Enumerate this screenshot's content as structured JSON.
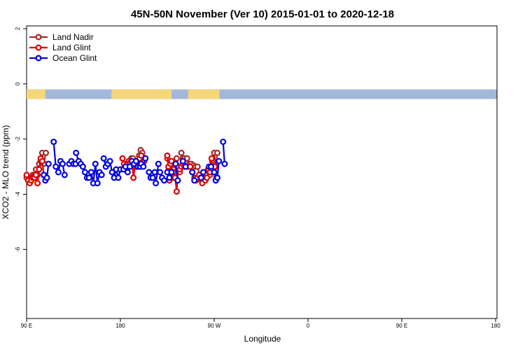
{
  "chart_data": {
    "type": "line",
    "title": "45N-50N November (Ver 10)   2015-01-01 to 2020-12-18",
    "xlabel": "Longitude",
    "ylabel": "XCO2 - MLO trend (ppm)",
    "xlim": [
      90,
      450
    ],
    "ylim": [
      -8.3,
      2
    ],
    "xticks": [
      {
        "value": 90,
        "label": "90 E"
      },
      {
        "value": 180,
        "label": "180"
      },
      {
        "value": 270,
        "label": "90 W"
      },
      {
        "value": 360,
        "label": "0"
      },
      {
        "value": 450,
        "label": "90 E"
      },
      {
        "value": 540,
        "label": "180"
      }
    ],
    "yticks": [
      {
        "value": 2,
        "label": "2"
      },
      {
        "value": 0,
        "label": "0"
      },
      {
        "value": -2,
        "label": "-2"
      },
      {
        "value": -4,
        "label": "-4"
      },
      {
        "value": -6,
        "label": "-6"
      }
    ],
    "grid": false,
    "legend_position": "top-left",
    "land_ocean_strip": {
      "y_range": [
        -0.55,
        -0.2
      ],
      "land_color": "#f5d77a",
      "ocean_color": "#a3b8d9"
    },
    "series": [
      {
        "name": "Land Nadir",
        "color": "#a52a2a",
        "segments": [
          [
            [
              90,
              -3.4
            ],
            [
              93,
              -3.5
            ],
            [
              96,
              -3.5
            ],
            [
              99,
              -3.4
            ],
            [
              102,
              -3.3
            ],
            [
              105,
              -3.3
            ],
            [
              108,
              -3.1
            ],
            [
              111,
              -3.3
            ],
            [
              114,
              -2.9
            ],
            [
              117,
              -2.8
            ],
            [
              120,
              -2.5
            ],
            [
              123,
              -2.9
            ],
            [
              127,
              -2.5
            ]
          ],
          [
            [
              279,
              -3.0
            ],
            [
              282,
              -3.0
            ],
            [
              285,
              -2.9
            ],
            [
              288,
              -2.8
            ],
            [
              291,
              -2.7
            ],
            [
              294,
              -2.7
            ],
            [
              297,
              -2.9
            ],
            [
              300,
              -3.0
            ],
            [
              303,
              -2.8
            ],
            [
              306,
              -2.6
            ],
            [
              309,
              -2.4
            ],
            [
              312,
              -2.5
            ],
            [
              315,
              -2.7
            ],
            [
              318,
              -2.7
            ]
          ],
          [
            [
              360,
              -2.7
            ],
            [
              363,
              -3.1
            ],
            [
              366,
              -2.9
            ],
            [
              369,
              -3.1
            ],
            [
              372,
              -3.1
            ],
            [
              375,
              -2.8
            ],
            [
              378,
              -2.7
            ],
            [
              381,
              -3.0
            ],
            [
              384,
              -3.2
            ],
            [
              387,
              -2.5
            ],
            [
              390,
              -2.7
            ],
            [
              393,
              -2.7
            ]
          ],
          [
            [
              398,
              -2.7
            ],
            [
              402,
              -2.9
            ],
            [
              406,
              -2.9
            ],
            [
              410,
              -2.95
            ],
            [
              414,
              -3.0
            ],
            [
              418,
              -3.0
            ],
            [
              422,
              -3.3
            ],
            [
              426,
              -3.5
            ],
            [
              430,
              -3.4
            ],
            [
              434,
              -3.3
            ],
            [
              438,
              -3.1
            ],
            [
              442,
              -3.3
            ],
            [
              446,
              -2.8
            ],
            [
              450,
              -2.5
            ],
            [
              453,
              -3.0
            ],
            [
              456,
              -2.5
            ]
          ]
        ]
      },
      {
        "name": "Land Glint",
        "color": "#e00000",
        "segments": [
          [
            [
              90,
              -3.3
            ],
            [
              93,
              -3.5
            ],
            [
              96,
              -3.6
            ],
            [
              99,
              -3.5
            ],
            [
              102,
              -3.4
            ],
            [
              105,
              -3.4
            ],
            [
              108,
              -3.3
            ],
            [
              111,
              -3.6
            ],
            [
              114,
              -3.1
            ],
            [
              117,
              -2.7
            ],
            [
              120,
              -2.8
            ],
            [
              123,
              -3.3
            ]
          ],
          [
            [
              274,
              -2.7
            ],
            [
              277,
              -2.9
            ],
            [
              280,
              -3.0
            ],
            [
              283,
              -2.9
            ],
            [
              286,
              -2.8
            ],
            [
              289,
              -2.85
            ],
            [
              292,
              -2.8
            ],
            [
              295,
              -3.4
            ],
            [
              298,
              -3.0
            ],
            [
              301,
              -3.0
            ],
            [
              304,
              -2.9
            ],
            [
              307,
              -2.7
            ],
            [
              310,
              -2.6
            ],
            [
              313,
              -2.9
            ],
            [
              316,
              -2.8
            ]
          ],
          [
            [
              360,
              -2.6
            ],
            [
              362,
              -3.0
            ],
            [
              364,
              -3.5
            ],
            [
              366,
              -2.9
            ],
            [
              368,
              -2.8
            ],
            [
              370,
              -3.4
            ],
            [
              372,
              -3.2
            ],
            [
              375,
              -3.4
            ],
            [
              378,
              -3.9
            ],
            [
              381,
              -3.0
            ],
            [
              384,
              -3.1
            ],
            [
              387,
              -3.0
            ],
            [
              390,
              -2.9
            ],
            [
              393,
              -3.0
            ]
          ],
          [
            [
              400,
              -3.0
            ],
            [
              404,
              -3.0
            ],
            [
              408,
              -3.2
            ],
            [
              412,
              -3.4
            ],
            [
              415,
              -3.5
            ],
            [
              418,
              -3.4
            ],
            [
              421,
              -3.3
            ],
            [
              424,
              -3.4
            ],
            [
              427,
              -3.6
            ],
            [
              430,
              -3.4
            ],
            [
              433,
              -3.5
            ],
            [
              436,
              -3.4
            ],
            [
              439,
              -3.1
            ],
            [
              442,
              -3.2
            ],
            [
              445,
              -2.7
            ],
            [
              448,
              -3.1
            ],
            [
              451,
              -3.0
            ],
            [
              454,
              -3.4
            ]
          ]
        ]
      },
      {
        "name": "Ocean Glint",
        "color": "#0000e0",
        "segments": [
          [
            [
              123,
              -3.3
            ],
            [
              126,
              -3.5
            ],
            [
              129,
              -3.4
            ],
            [
              132,
              -2.9
            ]
          ],
          [
            [
              142,
              -2.1
            ],
            [
              146,
              -3.0
            ]
          ],
          [
            [
              151,
              -3.2
            ],
            [
              155,
              -2.8
            ],
            [
              159,
              -2.9
            ],
            [
              163,
              -3.3
            ]
          ],
          [
            [
              172,
              -2.9
            ],
            [
              176,
              -2.8
            ],
            [
              180,
              -2.9
            ],
            [
              184,
              -2.9
            ]
          ],
          [
            [
              185,
              -2.5
            ],
            [
              190,
              -2.8
            ],
            [
              194,
              -2.9
            ],
            [
              198,
              -3.0
            ],
            [
              202,
              -3.2
            ],
            [
              206,
              -3.4
            ],
            [
              210,
              -3.4
            ],
            [
              214,
              -3.2
            ],
            [
              218,
              -3.6
            ],
            [
              222,
              -2.9
            ],
            [
              226,
              -3.6
            ],
            [
              230,
              -3.2
            ],
            [
              234,
              -3.3
            ]
          ],
          [
            [
              238,
              -2.7
            ],
            [
              242,
              -3.0
            ],
            [
              246,
              -2.9
            ]
          ],
          [
            [
              250,
              -2.8
            ],
            [
              254,
              -3.2
            ],
            [
              258,
              -3.4
            ],
            [
              262,
              -3.1
            ],
            [
              266,
              -3.4
            ],
            [
              270,
              -3.1
            ]
          ],
          [
            [
              276,
              -3.1
            ],
            [
              280,
              -3.0
            ],
            [
              284,
              -3.2
            ]
          ],
          [
            [
              288,
              -3.0
            ],
            [
              292,
              -2.8
            ],
            [
              296,
              -2.9
            ],
            [
              300,
              -2.8
            ],
            [
              304,
              -3.0
            ],
            [
              308,
              -3.0
            ]
          ],
          [
            [
              310,
              -2.9
            ],
            [
              314,
              -3.0
            ],
            [
              318,
              -2.7
            ]
          ],
          [
            [
              325,
              -3.2
            ],
            [
              328,
              -3.4
            ],
            [
              332,
              -3.4
            ],
            [
              336,
              -3.2
            ]
          ],
          [
            [
              338,
              -3.6
            ],
            [
              343,
              -2.9
            ]
          ],
          [
            [
              346,
              -3.2
            ],
            [
              350,
              -3.4
            ],
            [
              354,
              -3.5
            ]
          ],
          [
            [
              360,
              -3.2
            ],
            [
              364,
              -3.4
            ],
            [
              368,
              -3.2
            ]
          ],
          [
            [
              376,
              -2.9
            ],
            [
              380,
              -3.5
            ]
          ],
          [
            [
              390,
              -2.8
            ],
            [
              395,
              -3.0
            ]
          ],
          [
            [
              408,
              -3.2
            ],
            [
              412,
              -3.5
            ]
          ],
          [
            [
              425,
              -3.4
            ],
            [
              429,
              -3.2
            ]
          ],
          [
            [
              440,
              -3.0
            ],
            [
              444,
              -3.0
            ]
          ],
          [
            [
              450,
              -3.2
            ],
            [
              453,
              -3.5
            ],
            [
              456,
              -3.4
            ],
            [
              459,
              -2.8
            ]
          ],
          [
            [
              467,
              -2.1
            ],
            [
              470,
              -2.9
            ]
          ]
        ]
      }
    ]
  }
}
